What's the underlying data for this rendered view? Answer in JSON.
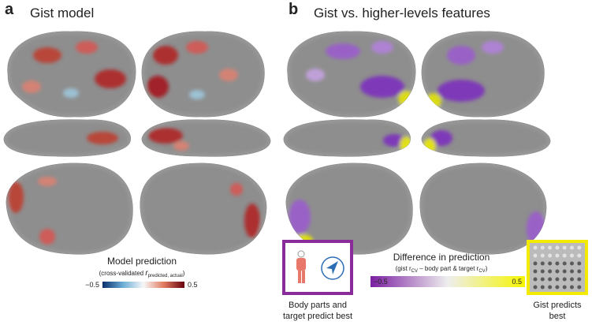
{
  "panel_a": {
    "label": "a",
    "title": "Gist model",
    "colorbar": {
      "title": "Model prediction",
      "subtitle_pre": "(cross-validated ",
      "subtitle_r": "r",
      "subtitle_sub": "predicted, actual",
      "subtitle_post": ")",
      "tick_min": "−0.5",
      "tick_max": "0.5"
    }
  },
  "panel_b": {
    "label": "b",
    "title": "Gist vs. higher-levels features",
    "colorbar": {
      "title": "Difference in prediction",
      "subtitle": "(gist r",
      "subtitle_sub1": "CV",
      "subtitle_mid": " – body part & target r",
      "subtitle_sub2": "CV",
      "subtitle_post": ")",
      "tick_min": "−0.5",
      "tick_max": "0.5"
    },
    "legend_left": {
      "line1": "Body parts and",
      "line2": "target predict best"
    },
    "legend_right": {
      "line1": "Gist predicts",
      "line2": "best"
    }
  }
}
